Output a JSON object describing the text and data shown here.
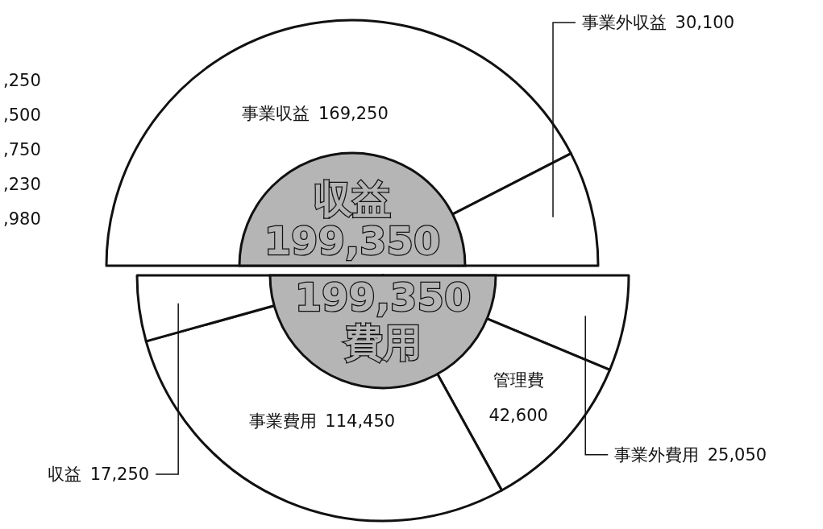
{
  "chart_data": [
    {
      "type": "pie",
      "title": "収益",
      "subtitle": "199,350",
      "categories": [
        "事業収益",
        "事業外収益"
      ],
      "values": [
        169250,
        30100
      ],
      "value_labels": [
        "169,250",
        "30,100"
      ],
      "colors": [
        "#ffffff",
        "#ffffff"
      ],
      "annotations": [
        ",250",
        ",500",
        ",750",
        ",230",
        ",980"
      ]
    },
    {
      "type": "pie",
      "title": "費用",
      "subtitle": "199,350",
      "categories": [
        "事業外費用",
        "管理費",
        "事業費用",
        "収益"
      ],
      "values": [
        25050,
        42600,
        114450,
        17250
      ],
      "value_labels": [
        "25,050",
        "42,600",
        "114,450",
        "17,250"
      ],
      "colors": [
        "#ffffff",
        "#ffffff",
        "#ffffff",
        "#ffffff"
      ]
    }
  ]
}
